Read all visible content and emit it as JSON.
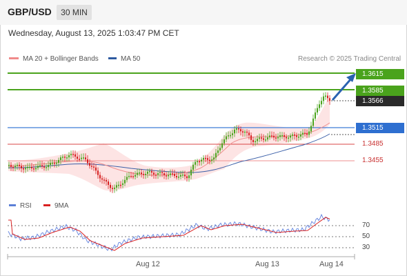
{
  "header": {
    "symbol": "GBP/USD",
    "timeframe": "30 MIN"
  },
  "datetime": "Wednesday, August 13, 2025 1:03:47 PM CET",
  "legend": {
    "ma20": {
      "label": "MA 20 + Bollinger Bands",
      "color": "#f08a8a"
    },
    "ma50": {
      "label": "MA 50",
      "color": "#2d5aa0"
    }
  },
  "credit": "Research © 2025 Trading Central",
  "levels": {
    "r2": {
      "label": "1.3615",
      "color": "#4aa31c"
    },
    "r1": {
      "label": "1.3585",
      "color": "#4aa31c"
    },
    "last": {
      "label": "1.3566",
      "color": "#2a2a2a"
    },
    "pivot": {
      "label": "1.3515",
      "color": "#3c7cd8"
    },
    "s1": {
      "label": "1.3485",
      "color": "#d94444"
    },
    "s2": {
      "label": "1.3455",
      "color": "#d94444"
    }
  },
  "rsi_panel": {
    "rsi": {
      "label": "RSI",
      "color": "#5b7fd6"
    },
    "ma": {
      "label": "9MA",
      "color": "#d92020"
    },
    "levels": [
      "70",
      "50",
      "30"
    ]
  },
  "x_axis": {
    "dates": [
      "Aug 12",
      "Aug 13",
      "Aug 14"
    ]
  },
  "colors": {
    "up": "#4aa31c",
    "down": "#d62020",
    "band": "#fde2e2",
    "arrow": "#2a62b0"
  }
}
